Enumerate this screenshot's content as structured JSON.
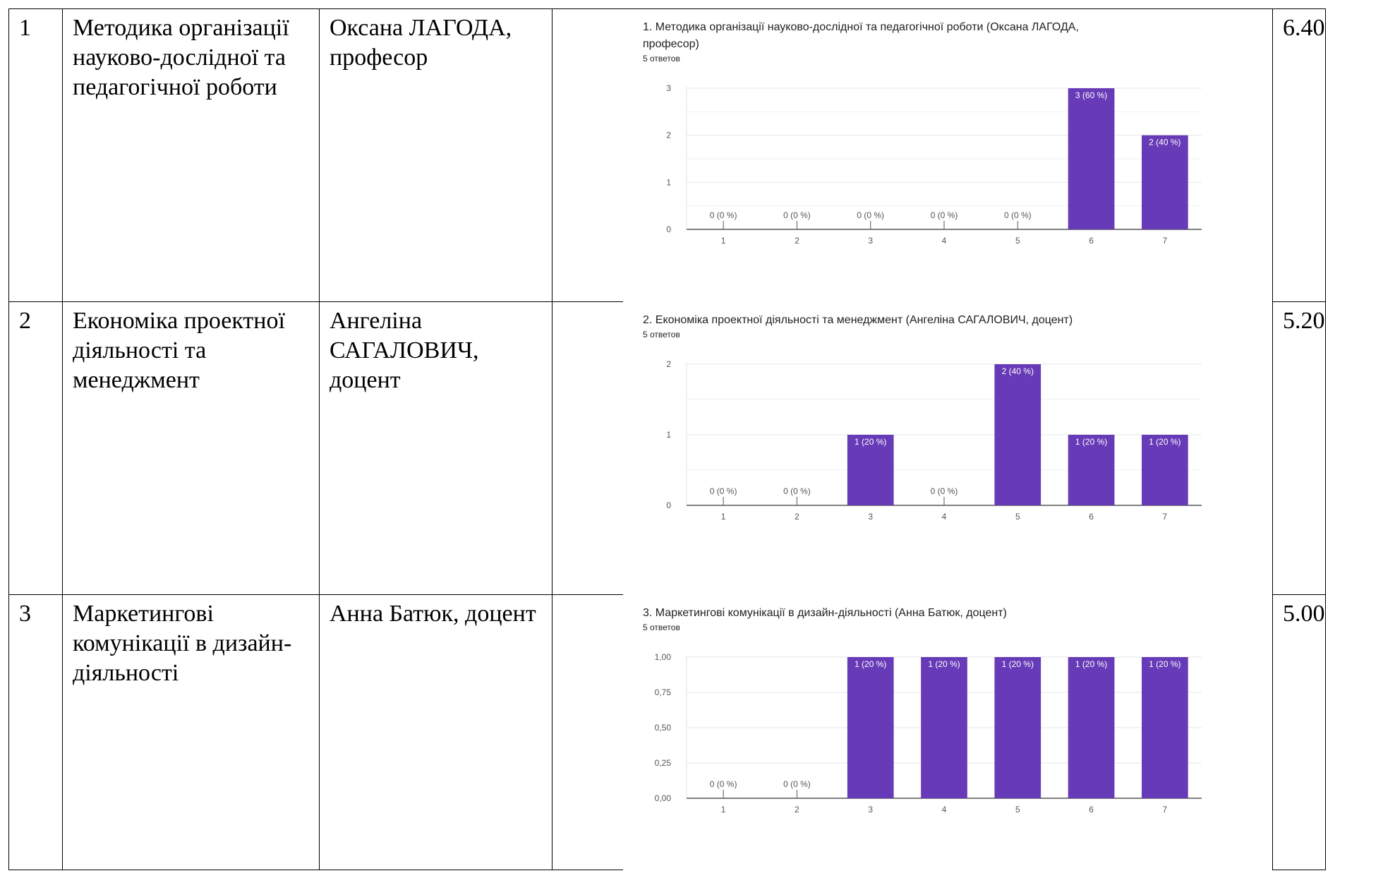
{
  "rows": [
    {
      "num": "1",
      "course": "Методика організації науково-дослідної та педагогічної роботи",
      "teacher": "Оксана ЛАГОДА, професор",
      "score": "6.40"
    },
    {
      "num": "2",
      "course": "Економіка проектної діяльності та менеджмент",
      "teacher": "Ангеліна САГАЛОВИЧ, доцент",
      "score": "5.20"
    },
    {
      "num": "3",
      "course": "Маркетингові комунікації в дизайн-діяльності",
      "teacher": "Анна Батюк, доцент",
      "score": "5.00"
    }
  ],
  "colors": {
    "bar": "#673ab7",
    "axis": "#555555",
    "grid": "#e6e6e6",
    "label": "#555555"
  },
  "chart_data": [
    {
      "type": "bar",
      "title_lines": [
        "1.  Методика організації науково-дослідної та педагогічної роботи (Оксана ЛАГОДА,",
        "професор)"
      ],
      "subtitle": "5 ответов",
      "categories": [
        "1",
        "2",
        "3",
        "4",
        "5",
        "6",
        "7"
      ],
      "values": [
        0,
        0,
        0,
        0,
        0,
        3,
        2
      ],
      "value_labels": [
        "0 (0 %)",
        "0 (0 %)",
        "0 (0 %)",
        "0 (0 %)",
        "0 (0 %)",
        "3 (60 %)",
        "2 (40 %)"
      ],
      "yticks": [
        "0",
        "1",
        "2",
        "3"
      ],
      "ylim": [
        0,
        3
      ],
      "grid": true
    },
    {
      "type": "bar",
      "title_lines": [
        "2. Економіка проектної діяльності та менеджмент (Ангеліна САГАЛОВИЧ, доцент)"
      ],
      "subtitle": "5 ответов",
      "categories": [
        "1",
        "2",
        "3",
        "4",
        "5",
        "6",
        "7"
      ],
      "values": [
        0,
        0,
        1,
        0,
        2,
        1,
        1
      ],
      "value_labels": [
        "0 (0 %)",
        "0 (0 %)",
        "1 (20 %)",
        "0 (0 %)",
        "2 (40 %)",
        "1 (20 %)",
        "1 (20 %)"
      ],
      "yticks": [
        "0",
        "1",
        "2"
      ],
      "ylim": [
        0,
        2
      ],
      "grid": true
    },
    {
      "type": "bar",
      "title_lines": [
        "3. Маркетингові комунікації в дизайн-діяльності (Анна Батюк, доцент)"
      ],
      "subtitle": "5 ответов",
      "categories": [
        "1",
        "2",
        "3",
        "4",
        "5",
        "6",
        "7"
      ],
      "values": [
        0,
        0,
        1,
        1,
        1,
        1,
        1
      ],
      "value_labels": [
        "0 (0 %)",
        "0 (0 %)",
        "1 (20 %)",
        "1 (20 %)",
        "1 (20 %)",
        "1 (20 %)",
        "1 (20 %)"
      ],
      "yticks": [
        "0,00",
        "0,25",
        "0,50",
        "0,75",
        "1,00"
      ],
      "ylim": [
        0,
        1
      ],
      "grid": true
    }
  ]
}
